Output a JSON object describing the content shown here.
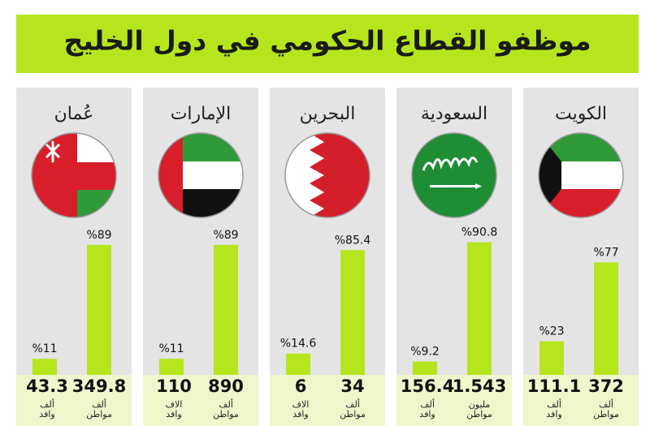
{
  "title": "موظفو القطاع الحكومي في دول الخليج",
  "chart_data": [
    {
      "type": "bar",
      "title": "الكويت",
      "color": "#b5e61d",
      "values": [
        23,
        77
      ],
      "value_labels": [
        "%23",
        "%77"
      ],
      "counts": [
        111.1,
        372
      ],
      "units": [
        [
          "ألف",
          "وافد"
        ],
        [
          "ألف",
          "مواطن"
        ]
      ]
    },
    {
      "type": "bar",
      "title": "السعودية",
      "color": "#b5e61d",
      "values": [
        9.2,
        90.8
      ],
      "value_labels": [
        "%9.2",
        "%90.8"
      ],
      "counts": [
        156.4,
        1.543
      ],
      "units": [
        [
          "ألف",
          "وافد"
        ],
        [
          "مليون",
          "مواطن"
        ]
      ]
    },
    {
      "type": "bar",
      "title": "البحرين",
      "color": "#b5e61d",
      "values": [
        14.6,
        85.4
      ],
      "value_labels": [
        "%14.6",
        "%85.4"
      ],
      "counts": [
        6,
        34
      ],
      "units": [
        [
          "الاف",
          "وافد"
        ],
        [
          "ألف",
          "مواطن"
        ]
      ]
    },
    {
      "type": "bar",
      "title": "الإمارات",
      "color": "#b5e61d",
      "values": [
        11,
        89
      ],
      "value_labels": [
        "%11",
        "%89"
      ],
      "counts": [
        110,
        890
      ],
      "units": [
        [
          "الاف",
          "وافد"
        ],
        [
          "ألف",
          "مواطن"
        ]
      ]
    },
    {
      "type": "bar",
      "title": "عُمان",
      "color": "#b5e61d",
      "values": [
        11,
        89
      ],
      "value_labels": [
        "%11",
        "%89"
      ],
      "counts": [
        43.3,
        349.8
      ],
      "units": [
        [
          "ألف",
          "وافد"
        ],
        [
          "ألف",
          "مواطن"
        ]
      ]
    }
  ]
}
